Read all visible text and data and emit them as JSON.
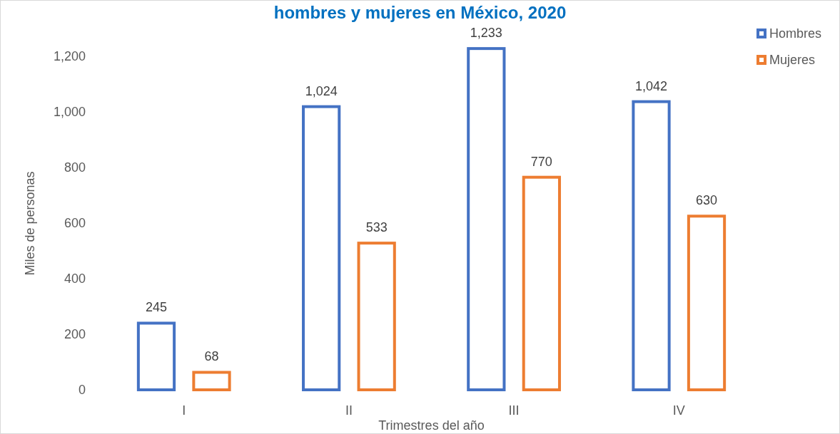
{
  "chart_data": {
    "type": "bar",
    "title": "hombres y mujeres en México, 2020",
    "xlabel": "Trimestres del año",
    "ylabel": "Miles de personas",
    "categories": [
      "I",
      "II",
      "III",
      "IV"
    ],
    "series": [
      {
        "name": "Hombres",
        "color": "#4472c4",
        "values": [
          245,
          1024,
          1233,
          1042
        ],
        "value_labels": [
          "245",
          "1,024",
          "1,233",
          "1,042"
        ]
      },
      {
        "name": "Mujeres",
        "color": "#ed7d31",
        "values": [
          68,
          533,
          770,
          630
        ],
        "value_labels": [
          "68",
          "533",
          "770",
          "630"
        ]
      }
    ],
    "ylim": [
      0,
      1300
    ],
    "yticks": [
      0,
      200,
      400,
      600,
      800,
      {
        "value": 1000,
        "label": "1,000"
      },
      {
        "value": 1200,
        "label": "1,200"
      }
    ],
    "legend": "top right",
    "grid": false
  }
}
